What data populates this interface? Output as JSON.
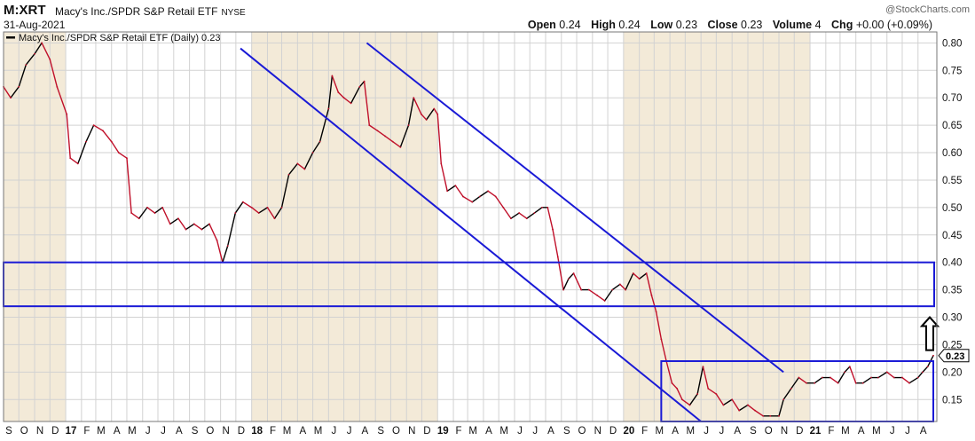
{
  "header": {
    "symbol": "M:XRT",
    "long_name": "Macy's Inc./SPDR S&P Retail ETF",
    "exchange": "NYSE",
    "date": "31-Aug-2021",
    "credit": "@StockCharts.com",
    "open_label": "Open",
    "open_value": "0.24",
    "high_label": "High",
    "high_value": "0.24",
    "low_label": "Low",
    "low_value": "0.23",
    "close_label": "Close",
    "close_value": "0.23",
    "volume_label": "Volume",
    "volume_value": "4",
    "chg_label": "Chg",
    "chg_value": "+0.00 (+0.09%)"
  },
  "colors": {
    "line": "#c0102a",
    "line_dark": "#000000",
    "channel": "#1a1ad6",
    "shade": "#f3ead8",
    "grid": "#d2d2d2",
    "last_badge_border": "#000000"
  },
  "chart_data": {
    "type": "line",
    "title": "M:XRT",
    "legend": "Macy's Inc./SPDR S&P Retail ETF (Daily) 0.23",
    "last_value_label": "0.23",
    "ylim": [
      0.11,
      0.82
    ],
    "y_ticks": [
      0.15,
      0.2,
      0.25,
      0.3,
      0.35,
      0.4,
      0.45,
      0.5,
      0.55,
      0.6,
      0.65,
      0.7,
      0.75,
      0.8
    ],
    "y_tick_labels": [
      "0.15",
      "0.20",
      "0.25",
      "0.30",
      "0.35",
      "0.40",
      "0.45",
      "0.50",
      "0.55",
      "0.60",
      "0.65",
      "0.70",
      "0.75",
      "0.80"
    ],
    "x_range": [
      "2016-09-01",
      "2021-08-31"
    ],
    "x_ticks": [
      {
        "label": "S",
        "date": "2016-09-01",
        "bold": false
      },
      {
        "label": "O",
        "date": "2016-10-01",
        "bold": false
      },
      {
        "label": "N",
        "date": "2016-11-01",
        "bold": false
      },
      {
        "label": "D",
        "date": "2016-12-01",
        "bold": false
      },
      {
        "label": "17",
        "date": "2017-01-01",
        "bold": true
      },
      {
        "label": "F",
        "date": "2017-02-01",
        "bold": false
      },
      {
        "label": "M",
        "date": "2017-03-01",
        "bold": false
      },
      {
        "label": "A",
        "date": "2017-04-01",
        "bold": false
      },
      {
        "label": "M",
        "date": "2017-05-01",
        "bold": false
      },
      {
        "label": "J",
        "date": "2017-06-01",
        "bold": false
      },
      {
        "label": "J",
        "date": "2017-07-01",
        "bold": false
      },
      {
        "label": "A",
        "date": "2017-08-01",
        "bold": false
      },
      {
        "label": "S",
        "date": "2017-09-01",
        "bold": false
      },
      {
        "label": "O",
        "date": "2017-10-01",
        "bold": false
      },
      {
        "label": "N",
        "date": "2017-11-01",
        "bold": false
      },
      {
        "label": "D",
        "date": "2017-12-01",
        "bold": false
      },
      {
        "label": "18",
        "date": "2018-01-01",
        "bold": true
      },
      {
        "label": "F",
        "date": "2018-02-01",
        "bold": false
      },
      {
        "label": "M",
        "date": "2018-03-01",
        "bold": false
      },
      {
        "label": "A",
        "date": "2018-04-01",
        "bold": false
      },
      {
        "label": "M",
        "date": "2018-05-01",
        "bold": false
      },
      {
        "label": "J",
        "date": "2018-06-01",
        "bold": false
      },
      {
        "label": "J",
        "date": "2018-07-01",
        "bold": false
      },
      {
        "label": "A",
        "date": "2018-08-01",
        "bold": false
      },
      {
        "label": "S",
        "date": "2018-09-01",
        "bold": false
      },
      {
        "label": "O",
        "date": "2018-10-01",
        "bold": false
      },
      {
        "label": "N",
        "date": "2018-11-01",
        "bold": false
      },
      {
        "label": "D",
        "date": "2018-12-01",
        "bold": false
      },
      {
        "label": "19",
        "date": "2019-01-01",
        "bold": true
      },
      {
        "label": "F",
        "date": "2019-02-01",
        "bold": false
      },
      {
        "label": "M",
        "date": "2019-03-01",
        "bold": false
      },
      {
        "label": "A",
        "date": "2019-04-01",
        "bold": false
      },
      {
        "label": "M",
        "date": "2019-05-01",
        "bold": false
      },
      {
        "label": "J",
        "date": "2019-06-01",
        "bold": false
      },
      {
        "label": "J",
        "date": "2019-07-01",
        "bold": false
      },
      {
        "label": "A",
        "date": "2019-08-01",
        "bold": false
      },
      {
        "label": "S",
        "date": "2019-09-01",
        "bold": false
      },
      {
        "label": "O",
        "date": "2019-10-01",
        "bold": false
      },
      {
        "label": "N",
        "date": "2019-11-01",
        "bold": false
      },
      {
        "label": "D",
        "date": "2019-12-01",
        "bold": false
      },
      {
        "label": "20",
        "date": "2020-01-01",
        "bold": true
      },
      {
        "label": "F",
        "date": "2020-02-01",
        "bold": false
      },
      {
        "label": "M",
        "date": "2020-03-01",
        "bold": false
      },
      {
        "label": "A",
        "date": "2020-04-01",
        "bold": false
      },
      {
        "label": "M",
        "date": "2020-05-01",
        "bold": false
      },
      {
        "label": "J",
        "date": "2020-06-01",
        "bold": false
      },
      {
        "label": "J",
        "date": "2020-07-01",
        "bold": false
      },
      {
        "label": "A",
        "date": "2020-08-01",
        "bold": false
      },
      {
        "label": "S",
        "date": "2020-09-01",
        "bold": false
      },
      {
        "label": "O",
        "date": "2020-10-01",
        "bold": false
      },
      {
        "label": "N",
        "date": "2020-11-01",
        "bold": false
      },
      {
        "label": "D",
        "date": "2020-12-01",
        "bold": false
      },
      {
        "label": "21",
        "date": "2021-01-01",
        "bold": true
      },
      {
        "label": "F",
        "date": "2021-02-01",
        "bold": false
      },
      {
        "label": "M",
        "date": "2021-03-01",
        "bold": false
      },
      {
        "label": "A",
        "date": "2021-04-01",
        "bold": false
      },
      {
        "label": "M",
        "date": "2021-05-01",
        "bold": false
      },
      {
        "label": "J",
        "date": "2021-06-01",
        "bold": false
      },
      {
        "label": "J",
        "date": "2021-07-01",
        "bold": false
      },
      {
        "label": "A",
        "date": "2021-08-01",
        "bold": false
      }
    ],
    "shaded_periods": [
      {
        "start": "2016-09-01",
        "end": "2017-01-01"
      },
      {
        "start": "2018-01-01",
        "end": "2019-01-01"
      },
      {
        "start": "2020-01-01",
        "end": "2021-01-01"
      }
    ],
    "series": [
      {
        "name": "Macy's Inc./SPDR S&P Retail ETF",
        "points": [
          {
            "x": "2016-09-01",
            "y": 0.72
          },
          {
            "x": "2016-09-15",
            "y": 0.7
          },
          {
            "x": "2016-10-01",
            "y": 0.72
          },
          {
            "x": "2016-10-15",
            "y": 0.76
          },
          {
            "x": "2016-11-01",
            "y": 0.78
          },
          {
            "x": "2016-11-15",
            "y": 0.8
          },
          {
            "x": "2016-12-01",
            "y": 0.77
          },
          {
            "x": "2016-12-15",
            "y": 0.72
          },
          {
            "x": "2017-01-03",
            "y": 0.67
          },
          {
            "x": "2017-01-10",
            "y": 0.59
          },
          {
            "x": "2017-01-25",
            "y": 0.58
          },
          {
            "x": "2017-02-10",
            "y": 0.62
          },
          {
            "x": "2017-02-25",
            "y": 0.65
          },
          {
            "x": "2017-03-15",
            "y": 0.64
          },
          {
            "x": "2017-04-01",
            "y": 0.62
          },
          {
            "x": "2017-04-15",
            "y": 0.6
          },
          {
            "x": "2017-05-01",
            "y": 0.59
          },
          {
            "x": "2017-05-10",
            "y": 0.49
          },
          {
            "x": "2017-05-25",
            "y": 0.48
          },
          {
            "x": "2017-06-10",
            "y": 0.5
          },
          {
            "x": "2017-06-25",
            "y": 0.49
          },
          {
            "x": "2017-07-10",
            "y": 0.5
          },
          {
            "x": "2017-07-25",
            "y": 0.47
          },
          {
            "x": "2017-08-10",
            "y": 0.48
          },
          {
            "x": "2017-08-25",
            "y": 0.46
          },
          {
            "x": "2017-09-10",
            "y": 0.47
          },
          {
            "x": "2017-09-25",
            "y": 0.46
          },
          {
            "x": "2017-10-10",
            "y": 0.47
          },
          {
            "x": "2017-10-25",
            "y": 0.44
          },
          {
            "x": "2017-11-05",
            "y": 0.4
          },
          {
            "x": "2017-11-15",
            "y": 0.43
          },
          {
            "x": "2017-11-30",
            "y": 0.49
          },
          {
            "x": "2017-12-15",
            "y": 0.51
          },
          {
            "x": "2018-01-01",
            "y": 0.5
          },
          {
            "x": "2018-01-15",
            "y": 0.49
          },
          {
            "x": "2018-02-01",
            "y": 0.5
          },
          {
            "x": "2018-02-15",
            "y": 0.48
          },
          {
            "x": "2018-03-01",
            "y": 0.5
          },
          {
            "x": "2018-03-15",
            "y": 0.56
          },
          {
            "x": "2018-04-01",
            "y": 0.58
          },
          {
            "x": "2018-04-15",
            "y": 0.57
          },
          {
            "x": "2018-05-01",
            "y": 0.6
          },
          {
            "x": "2018-05-15",
            "y": 0.62
          },
          {
            "x": "2018-06-01",
            "y": 0.68
          },
          {
            "x": "2018-06-08",
            "y": 0.74
          },
          {
            "x": "2018-06-20",
            "y": 0.71
          },
          {
            "x": "2018-07-01",
            "y": 0.7
          },
          {
            "x": "2018-07-15",
            "y": 0.69
          },
          {
            "x": "2018-08-01",
            "y": 0.72
          },
          {
            "x": "2018-08-10",
            "y": 0.73
          },
          {
            "x": "2018-08-20",
            "y": 0.65
          },
          {
            "x": "2018-09-05",
            "y": 0.64
          },
          {
            "x": "2018-09-20",
            "y": 0.63
          },
          {
            "x": "2018-10-05",
            "y": 0.62
          },
          {
            "x": "2018-10-20",
            "y": 0.61
          },
          {
            "x": "2018-11-05",
            "y": 0.65
          },
          {
            "x": "2018-11-15",
            "y": 0.7
          },
          {
            "x": "2018-11-30",
            "y": 0.67
          },
          {
            "x": "2018-12-10",
            "y": 0.66
          },
          {
            "x": "2018-12-25",
            "y": 0.68
          },
          {
            "x": "2019-01-01",
            "y": 0.67
          },
          {
            "x": "2019-01-08",
            "y": 0.58
          },
          {
            "x": "2019-01-20",
            "y": 0.53
          },
          {
            "x": "2019-02-05",
            "y": 0.54
          },
          {
            "x": "2019-02-20",
            "y": 0.52
          },
          {
            "x": "2019-03-10",
            "y": 0.51
          },
          {
            "x": "2019-03-25",
            "y": 0.52
          },
          {
            "x": "2019-04-10",
            "y": 0.53
          },
          {
            "x": "2019-04-25",
            "y": 0.52
          },
          {
            "x": "2019-05-10",
            "y": 0.5
          },
          {
            "x": "2019-05-25",
            "y": 0.48
          },
          {
            "x": "2019-06-10",
            "y": 0.49
          },
          {
            "x": "2019-06-25",
            "y": 0.48
          },
          {
            "x": "2019-07-10",
            "y": 0.49
          },
          {
            "x": "2019-07-25",
            "y": 0.5
          },
          {
            "x": "2019-08-05",
            "y": 0.5
          },
          {
            "x": "2019-08-15",
            "y": 0.46
          },
          {
            "x": "2019-08-25",
            "y": 0.41
          },
          {
            "x": "2019-09-05",
            "y": 0.35
          },
          {
            "x": "2019-09-15",
            "y": 0.37
          },
          {
            "x": "2019-09-25",
            "y": 0.38
          },
          {
            "x": "2019-10-10",
            "y": 0.35
          },
          {
            "x": "2019-10-25",
            "y": 0.35
          },
          {
            "x": "2019-11-10",
            "y": 0.34
          },
          {
            "x": "2019-11-25",
            "y": 0.33
          },
          {
            "x": "2019-12-10",
            "y": 0.35
          },
          {
            "x": "2019-12-25",
            "y": 0.36
          },
          {
            "x": "2020-01-05",
            "y": 0.35
          },
          {
            "x": "2020-01-20",
            "y": 0.38
          },
          {
            "x": "2020-02-01",
            "y": 0.37
          },
          {
            "x": "2020-02-15",
            "y": 0.38
          },
          {
            "x": "2020-02-25",
            "y": 0.34
          },
          {
            "x": "2020-03-05",
            "y": 0.31
          },
          {
            "x": "2020-03-15",
            "y": 0.26
          },
          {
            "x": "2020-03-25",
            "y": 0.22
          },
          {
            "x": "2020-04-05",
            "y": 0.18
          },
          {
            "x": "2020-04-15",
            "y": 0.17
          },
          {
            "x": "2020-04-25",
            "y": 0.15
          },
          {
            "x": "2020-05-10",
            "y": 0.14
          },
          {
            "x": "2020-05-25",
            "y": 0.16
          },
          {
            "x": "2020-06-05",
            "y": 0.21
          },
          {
            "x": "2020-06-15",
            "y": 0.17
          },
          {
            "x": "2020-07-01",
            "y": 0.16
          },
          {
            "x": "2020-07-15",
            "y": 0.14
          },
          {
            "x": "2020-08-01",
            "y": 0.15
          },
          {
            "x": "2020-08-15",
            "y": 0.13
          },
          {
            "x": "2020-09-01",
            "y": 0.14
          },
          {
            "x": "2020-09-15",
            "y": 0.13
          },
          {
            "x": "2020-10-01",
            "y": 0.12
          },
          {
            "x": "2020-10-15",
            "y": 0.12
          },
          {
            "x": "2020-11-01",
            "y": 0.12
          },
          {
            "x": "2020-11-10",
            "y": 0.15
          },
          {
            "x": "2020-11-25",
            "y": 0.17
          },
          {
            "x": "2020-12-10",
            "y": 0.19
          },
          {
            "x": "2020-12-25",
            "y": 0.18
          },
          {
            "x": "2021-01-10",
            "y": 0.18
          },
          {
            "x": "2021-01-25",
            "y": 0.19
          },
          {
            "x": "2021-02-10",
            "y": 0.19
          },
          {
            "x": "2021-02-25",
            "y": 0.18
          },
          {
            "x": "2021-03-10",
            "y": 0.2
          },
          {
            "x": "2021-03-20",
            "y": 0.21
          },
          {
            "x": "2021-04-01",
            "y": 0.18
          },
          {
            "x": "2021-04-15",
            "y": 0.18
          },
          {
            "x": "2021-05-01",
            "y": 0.19
          },
          {
            "x": "2021-05-15",
            "y": 0.19
          },
          {
            "x": "2021-06-01",
            "y": 0.2
          },
          {
            "x": "2021-06-15",
            "y": 0.19
          },
          {
            "x": "2021-07-01",
            "y": 0.19
          },
          {
            "x": "2021-07-15",
            "y": 0.18
          },
          {
            "x": "2021-08-01",
            "y": 0.19
          },
          {
            "x": "2021-08-10",
            "y": 0.2
          },
          {
            "x": "2021-08-20",
            "y": 0.21
          },
          {
            "x": "2021-08-31",
            "y": 0.23
          }
        ]
      }
    ],
    "annotations": {
      "channel_lines": [
        {
          "start": {
            "x": "2017-12-10",
            "y": 0.79
          },
          "end": {
            "x": "2020-06-01",
            "y": 0.11
          }
        },
        {
          "start": {
            "x": "2018-08-15",
            "y": 0.8
          },
          "end": {
            "x": "2020-11-10",
            "y": 0.2
          }
        }
      ],
      "rectangles": [
        {
          "x0": "2016-09-01",
          "x1": "2021-09-05",
          "y0": 0.32,
          "y1": 0.4
        },
        {
          "x0": "2020-03-15",
          "x1": "2021-08-31",
          "y0": 0.11,
          "y1": 0.22
        }
      ],
      "arrow": {
        "x": "2021-09-05",
        "y_from": 0.24,
        "y_to": 0.3,
        "direction": "up"
      }
    }
  }
}
